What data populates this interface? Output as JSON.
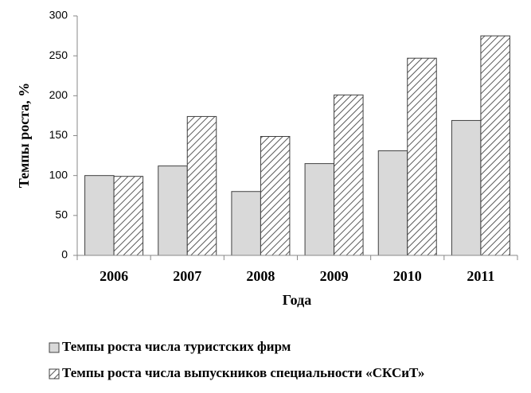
{
  "chart_data": {
    "type": "bar",
    "x_label": "Года",
    "y_label": "Темпы роста, %",
    "categories": [
      "2006",
      "2007",
      "2008",
      "2009",
      "2010",
      "2011"
    ],
    "series": [
      {
        "name": "Темпы роста числа туристских фирм",
        "color": "#d9d9d9",
        "values": [
          100,
          112,
          80,
          115,
          131,
          169
        ]
      },
      {
        "name": "Темпы роста числа выпускников специальности «СКСиТ»",
        "color": "#595959",
        "pattern": "hatch",
        "values": [
          99,
          174,
          149,
          201,
          247,
          275
        ]
      }
    ],
    "ylim": [
      0,
      300
    ],
    "yticks": [
      0,
      50,
      100,
      150,
      200,
      250,
      300
    ],
    "grid": false,
    "legend": "bottom-left"
  }
}
